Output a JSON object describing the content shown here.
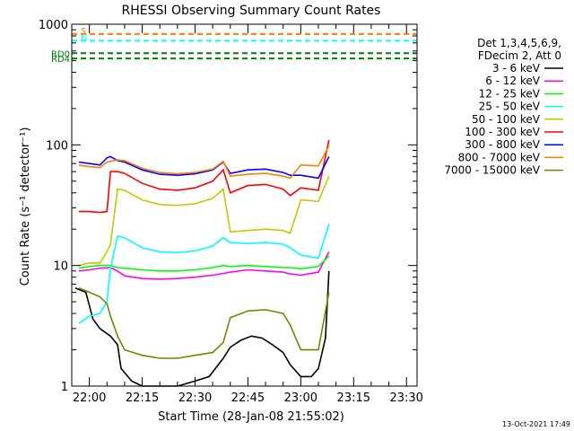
{
  "chart_data": {
    "type": "line",
    "title": "RHESSI Observing Summary Count Rates",
    "xlabel": "Start Time (28-Jan-08 21:55:02)",
    "ylabel": "Count Rate (s⁻¹ detector⁻¹)",
    "y_scale": "log",
    "ylim": [
      1,
      1000
    ],
    "xlim": [
      "21:55",
      "23:33"
    ],
    "x_ticks": [
      "22:00",
      "22:15",
      "22:30",
      "22:45",
      "23:00",
      "23:15",
      "23:30"
    ],
    "y_ticks": [
      "1",
      "10",
      "100",
      "1000"
    ],
    "grid": false,
    "legend_position": "right",
    "legend_header": [
      "Det 1,3,4,5,6,9,",
      "FDecim 2, Att 0"
    ],
    "series": [
      {
        "name": "3 - 6 keV",
        "color": "#000000",
        "x": [
          "21:56",
          "21:59",
          "22:01",
          "22:03",
          "22:06",
          "22:08",
          "22:09",
          "22:12",
          "22:15",
          "22:20",
          "22:25",
          "22:30",
          "22:34",
          "22:38",
          "22:40",
          "22:43",
          "22:46",
          "22:49",
          "22:52",
          "22:55",
          "22:57",
          "23:00",
          "23:03",
          "23:05",
          "23:07",
          "23:08"
        ],
        "y": [
          6.5,
          6.0,
          3.6,
          3.0,
          2.6,
          2.2,
          1.4,
          1.1,
          1.0,
          1.0,
          1.0,
          1.1,
          1.2,
          1.7,
          2.1,
          2.4,
          2.6,
          2.5,
          2.2,
          1.9,
          1.5,
          1.2,
          1.2,
          1.4,
          2.5,
          9.0
        ]
      },
      {
        "name": "6 - 12 keV",
        "color": "#ff00ff",
        "x": [
          "21:57",
          "22:00",
          "22:03",
          "22:06",
          "22:08",
          "22:10",
          "22:15",
          "22:20",
          "22:25",
          "22:30",
          "22:35",
          "22:38",
          "22:40",
          "22:45",
          "22:50",
          "22:55",
          "22:57",
          "23:00",
          "23:05",
          "23:08"
        ],
        "y": [
          9.0,
          9.2,
          9.5,
          9.6,
          9.0,
          8.2,
          7.8,
          7.7,
          7.8,
          8.0,
          8.3,
          8.6,
          8.8,
          9.2,
          9.0,
          8.8,
          8.5,
          8.3,
          8.8,
          13.0
        ]
      },
      {
        "name": "12 - 25 keV",
        "color": "#00ff00",
        "x": [
          "21:57",
          "22:00",
          "22:03",
          "22:06",
          "22:08",
          "22:10",
          "22:15",
          "22:20",
          "22:25",
          "22:30",
          "22:35",
          "22:38",
          "22:40",
          "22:45",
          "22:50",
          "22:55",
          "22:57",
          "23:00",
          "23:05",
          "23:08"
        ],
        "y": [
          9.5,
          9.8,
          10.0,
          10.0,
          9.6,
          9.5,
          9.2,
          9.0,
          9.0,
          9.2,
          9.6,
          10.0,
          9.8,
          10.0,
          9.8,
          9.6,
          9.6,
          9.4,
          9.8,
          12.0
        ]
      },
      {
        "name": "25 - 50 keV",
        "color": "#00ffff",
        "x": [
          "21:57",
          "22:00",
          "22:03",
          "22:05",
          "22:06",
          "22:08",
          "22:10",
          "22:15",
          "22:20",
          "22:25",
          "22:30",
          "22:35",
          "22:38",
          "22:40",
          "22:45",
          "22:50",
          "22:55",
          "22:57",
          "23:00",
          "23:05",
          "23:08"
        ],
        "y": [
          3.3,
          3.8,
          4.0,
          5.0,
          9.5,
          17.5,
          17.0,
          14.0,
          13.0,
          12.8,
          13.2,
          14.5,
          17.0,
          15.5,
          15.2,
          15.5,
          15.0,
          14.0,
          12.2,
          11.5,
          22.0
        ]
      },
      {
        "name": "50 - 100 keV",
        "color": "#c8c800",
        "x": [
          "21:57",
          "22:00",
          "22:03",
          "22:05",
          "22:06",
          "22:08",
          "22:10",
          "22:15",
          "22:20",
          "22:25",
          "22:30",
          "22:35",
          "22:38",
          "22:40",
          "22:45",
          "22:50",
          "22:55",
          "22:57",
          "23:00",
          "23:05",
          "23:08"
        ],
        "y": [
          10.0,
          10.5,
          10.5,
          13.0,
          15.0,
          43.0,
          42.0,
          35.0,
          32.0,
          31.5,
          32.5,
          36.0,
          43.0,
          19.0,
          19.5,
          20.0,
          19.5,
          18.5,
          35.0,
          34.0,
          55.0
        ]
      },
      {
        "name": "100 - 300 keV",
        "color": "#ff0000",
        "x": [
          "21:57",
          "22:00",
          "22:03",
          "22:05",
          "22:06",
          "22:08",
          "22:10",
          "22:15",
          "22:20",
          "22:25",
          "22:30",
          "22:35",
          "22:38",
          "22:40",
          "22:45",
          "22:50",
          "22:55",
          "22:57",
          "23:00",
          "23:05",
          "23:08"
        ],
        "y": [
          28.0,
          28.0,
          27.5,
          28.0,
          60.0,
          60.0,
          58.0,
          48.0,
          43.0,
          42.0,
          44.0,
          50.0,
          62.0,
          40.0,
          46.0,
          47.0,
          43.0,
          38.0,
          44.0,
          42.0,
          110.0
        ]
      },
      {
        "name": "300 - 800 keV",
        "color": "#0000ff",
        "x": [
          "21:57",
          "22:00",
          "22:03",
          "22:05",
          "22:06",
          "22:08",
          "22:10",
          "22:15",
          "22:20",
          "22:25",
          "22:30",
          "22:35",
          "22:38",
          "22:40",
          "22:45",
          "22:50",
          "22:55",
          "22:57",
          "23:00",
          "23:05",
          "23:08"
        ],
        "y": [
          72.0,
          70.0,
          68.0,
          78.0,
          80.0,
          74.0,
          72.0,
          62.0,
          57.0,
          56.0,
          57.5,
          62.0,
          72.0,
          58.0,
          62.0,
          63.0,
          59.0,
          56.0,
          56.0,
          53.0,
          80.0
        ]
      },
      {
        "name": "800 - 7000 keV",
        "color": "#ff8000",
        "x": [
          "21:57",
          "22:00",
          "22:03",
          "22:05",
          "22:06",
          "22:08",
          "22:10",
          "22:15",
          "22:20",
          "22:25",
          "22:30",
          "22:35",
          "22:38",
          "22:40",
          "22:45",
          "22:50",
          "22:55",
          "22:57",
          "23:00",
          "23:05",
          "23:08"
        ],
        "y": [
          68.0,
          66.0,
          65.0,
          72.0,
          73.0,
          75.0,
          74.0,
          64.0,
          59.0,
          57.5,
          59.0,
          63.0,
          73.0,
          55.0,
          57.0,
          58.0,
          55.0,
          53.0,
          68.0,
          67.0,
          98.0
        ]
      },
      {
        "name": "7000 - 15000 keV",
        "color": "#808000",
        "x": [
          "21:57",
          "22:00",
          "22:03",
          "22:05",
          "22:06",
          "22:08",
          "22:10",
          "22:15",
          "22:20",
          "22:25",
          "22:30",
          "22:35",
          "22:38",
          "22:40",
          "22:45",
          "22:50",
          "22:55",
          "22:57",
          "23:00",
          "23:05",
          "23:08"
        ],
        "y": [
          6.5,
          6.0,
          5.5,
          4.8,
          3.8,
          2.6,
          2.0,
          1.8,
          1.7,
          1.7,
          1.8,
          1.9,
          2.3,
          3.7,
          4.2,
          4.3,
          4.0,
          3.2,
          2.0,
          2.0,
          6.0
        ]
      }
    ],
    "markers": [
      {
        "label": "S",
        "color": "#ff8000",
        "level": 830
      },
      {
        "label": "N",
        "color": "#00ffff",
        "level": 730
      },
      {
        "label": "RD0",
        "color": "#008000",
        "level": 575
      },
      {
        "label": "RD4",
        "color": "#008000",
        "level": 520
      }
    ]
  },
  "footer": {
    "timestamp": "13-Oct-2021 17:49"
  }
}
